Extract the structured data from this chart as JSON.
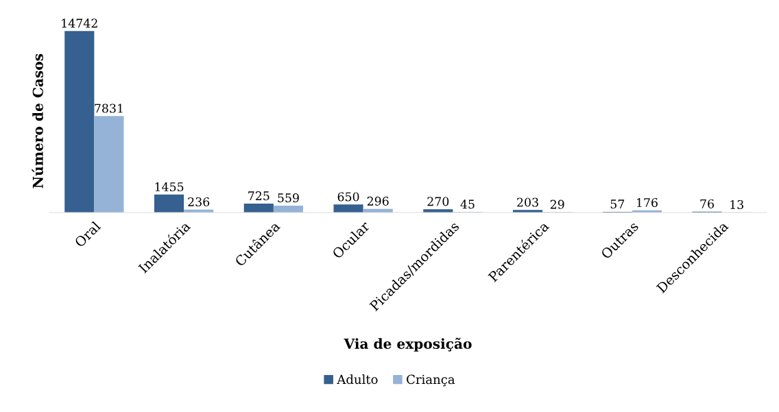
{
  "chart_data": {
    "type": "bar",
    "xlabel": "Via de exposição",
    "ylabel": "Número de Casos",
    "categories": [
      "Oral",
      "Inalatória",
      "Cutânea",
      "Ocular",
      "Picadas/mordidas",
      "Parentérica",
      "Outras",
      "Desconhecida"
    ],
    "series": [
      {
        "name": "Adulto",
        "color": "#35608f",
        "values": [
          14742,
          1455,
          725,
          650,
          270,
          203,
          57,
          76
        ]
      },
      {
        "name": "Criança",
        "color": "#95b3d7",
        "values": [
          7831,
          236,
          559,
          296,
          45,
          29,
          176,
          13
        ]
      }
    ],
    "data_labels": true,
    "legend": "bottom",
    "tick_labels": "x",
    "grid": false
  }
}
